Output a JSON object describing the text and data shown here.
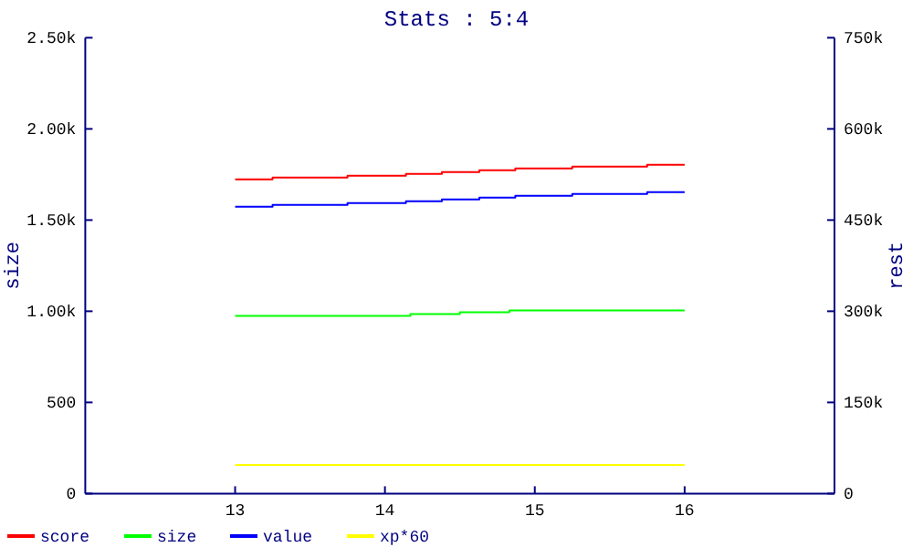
{
  "chart_data": {
    "type": "step",
    "title": "Stats : 5:4",
    "ylabel": "size",
    "y2label": "rest",
    "xlim": [
      12,
      17
    ],
    "xticks": [
      13,
      14,
      15,
      16
    ],
    "ylim": [
      0,
      2500
    ],
    "yticks": [
      0,
      500,
      {
        "value": 1000,
        "label": "1.00k"
      },
      {
        "value": 1500,
        "label": "1.50k"
      },
      {
        "value": 2000,
        "label": "2.00k"
      },
      {
        "value": 2500,
        "label": "2.50k"
      }
    ],
    "y2lim": [
      0,
      750000
    ],
    "y2ticks": [
      0,
      {
        "value": 150000,
        "label": "150k"
      },
      {
        "value": 300000,
        "label": "300k"
      },
      {
        "value": 450000,
        "label": "450k"
      },
      {
        "value": 600000,
        "label": "600k"
      },
      {
        "value": 750000,
        "label": "750k"
      }
    ],
    "legend": "bottom left",
    "series": [
      {
        "name": "score",
        "color": "#ff0000",
        "axis": "y2",
        "x": [
          13,
          13.25,
          13.75,
          14.14,
          14.38,
          14.63,
          14.87,
          15.25,
          15.75,
          16
        ],
        "values": [
          517000,
          520000,
          523000,
          526000,
          529000,
          532000,
          535000,
          538000,
          541000,
          541000
        ]
      },
      {
        "name": "size",
        "color": "#00ff00",
        "x": [
          13,
          14.17,
          14.5,
          14.83,
          16
        ],
        "values": [
          975,
          985,
          995,
          1005,
          1005
        ]
      },
      {
        "name": "value",
        "color": "#0000ff",
        "axis": "y2",
        "x": [
          13,
          13.25,
          13.75,
          14.14,
          14.38,
          14.63,
          14.87,
          15.25,
          15.75,
          16
        ],
        "values": [
          472000,
          475000,
          478000,
          481000,
          484000,
          487000,
          490000,
          493000,
          496000,
          496000
        ]
      },
      {
        "name": "xp*60",
        "color": "#ffff00",
        "axis": "y2",
        "x": [
          13,
          16
        ],
        "values": [
          47000,
          47000
        ]
      }
    ]
  }
}
